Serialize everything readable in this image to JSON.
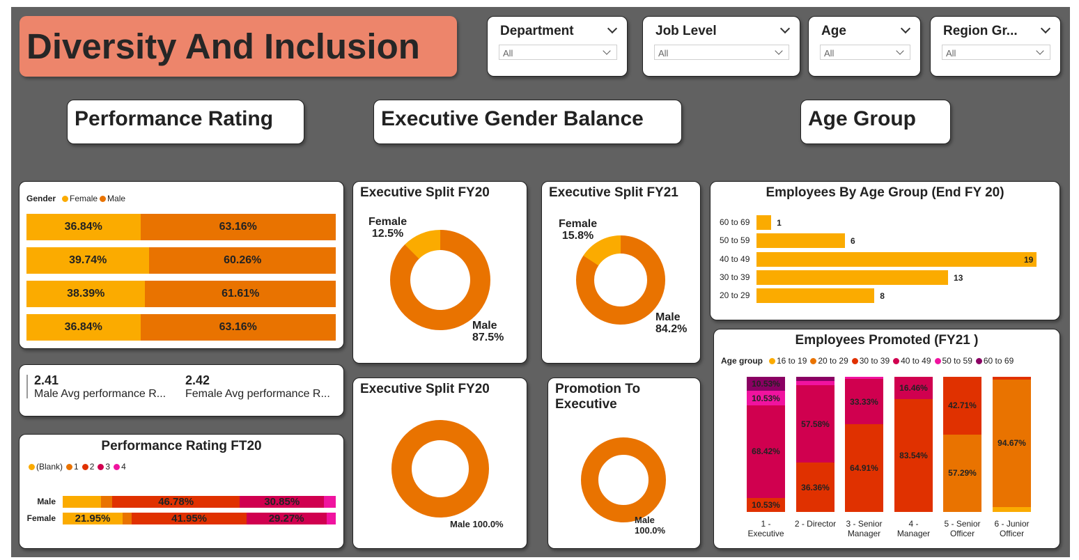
{
  "header": {
    "title": "Diversity And Inclusion"
  },
  "slicers": [
    {
      "label": "Department",
      "value": "All"
    },
    {
      "label": "Job Level",
      "value": "All"
    },
    {
      "label": "Age",
      "value": "All"
    },
    {
      "label": "Region Gr...",
      "value": "All"
    }
  ],
  "sections": {
    "performance": "Performance Rating",
    "executive": "Executive Gender Balance",
    "age": "Age Group"
  },
  "colors": {
    "female": "#fbab00",
    "male": "#e97300",
    "age_16_19": "#fbab00",
    "age_20_29": "#e97300",
    "age_30_39": "#e03100",
    "age_40_49": "#d0004f",
    "age_50_59": "#f0139f",
    "age_60_69": "#8a0063"
  },
  "kpis": [
    {
      "value": "2.41",
      "label": "Male Avg performance R..."
    },
    {
      "value": "2.42",
      "label": "Female Avg performance R..."
    }
  ],
  "chart_data": [
    {
      "id": "gender-performance",
      "type": "bar",
      "orientation": "horizontal-100-stacked",
      "legend_title": "Gender",
      "legend_position": "top-left",
      "series": [
        {
          "name": "Female",
          "values": [
            36.84,
            39.74,
            38.39,
            36.84
          ]
        },
        {
          "name": "Male",
          "values": [
            63.16,
            60.26,
            61.61,
            63.16
          ]
        }
      ],
      "labels": [
        [
          "36.84%",
          "63.16%"
        ],
        [
          "39.74%",
          "60.26%"
        ],
        [
          "38.39%",
          "61.61%"
        ],
        [
          "36.84%",
          "63.16%"
        ]
      ]
    },
    {
      "id": "perf-rating-ft20",
      "type": "bar",
      "orientation": "horizontal-100-stacked",
      "title": "Performance Rating FT20",
      "legend_position": "top-left",
      "legend": [
        "(Blank)",
        "1",
        "2",
        "3",
        "4"
      ],
      "legend_colors": [
        "#fbab00",
        "#e97300",
        "#e03100",
        "#d0004f",
        "#f0139f"
      ],
      "categories": [
        "Male",
        "Female"
      ],
      "rows": [
        {
          "values": [
            14.0,
            4.1,
            46.78,
            30.85,
            4.27
          ],
          "labels": [
            "",
            "",
            "46.78%",
            "30.85%",
            ""
          ]
        },
        {
          "values": [
            21.95,
            3.4,
            41.95,
            29.27,
            3.43
          ],
          "labels": [
            "21.95%",
            "",
            "41.95%",
            "29.27%",
            ""
          ]
        }
      ]
    },
    {
      "id": "exec-split-fy20",
      "type": "pie",
      "title": "Executive Split FY20",
      "slices": [
        {
          "name": "Female",
          "label": "12.5%",
          "value": 12.5
        },
        {
          "name": "Male",
          "label": "87.5%",
          "value": 87.5
        }
      ]
    },
    {
      "id": "exec-split-fy21",
      "type": "pie",
      "title": "Executive Split FY21",
      "slices": [
        {
          "name": "Female",
          "label": "15.8%",
          "value": 15.8
        },
        {
          "name": "Male",
          "label": "84.2%",
          "value": 84.2
        }
      ]
    },
    {
      "id": "exec-split-fy20-b",
      "type": "pie",
      "title": "Executive Split FY20",
      "slices": [
        {
          "name": "Male",
          "label": "Male 100.0%",
          "value": 100.0
        }
      ]
    },
    {
      "id": "promotion-to-exec",
      "type": "pie",
      "title": "Promotion To Executive",
      "slices": [
        {
          "name": "Male",
          "label": "100.0%",
          "value": 100.0
        }
      ]
    },
    {
      "id": "employees-by-age",
      "type": "bar",
      "orientation": "horizontal",
      "title": "Employees By Age Group (End FY 20)",
      "categories": [
        "60 to 69",
        "50 to 59",
        "40 to 49",
        "30 to 39",
        "20 to 29"
      ],
      "values": [
        1,
        6,
        19,
        13,
        8
      ],
      "xlim": [
        0,
        19
      ]
    },
    {
      "id": "employees-promoted",
      "type": "bar",
      "orientation": "vertical-100-stacked",
      "title": "Employees Promoted (FY21 )",
      "legend_title": "Age group",
      "legend_position": "top-left",
      "legend": [
        "16 to 19",
        "20 to 29",
        "30 to 39",
        "40 to 49",
        "50 to 59",
        "60 to 69"
      ],
      "categories": [
        "1 - Executive",
        "2 - Director",
        "3 - Senior Manager",
        "4 - Manager",
        "5 - Senior Officer",
        "6 - Junior Officer"
      ],
      "category_lines": [
        [
          "1 -",
          "Executive"
        ],
        [
          "2 - Director"
        ],
        [
          "3 - Senior",
          "Manager"
        ],
        [
          "4 -",
          "Manager"
        ],
        [
          "5 - Senior",
          "Officer"
        ],
        [
          "6 - Junior",
          "Officer"
        ]
      ],
      "series": [
        {
          "name": "16 to 19",
          "values": [
            0,
            0,
            0,
            0,
            0,
            3.5
          ]
        },
        {
          "name": "20 to 29",
          "values": [
            0,
            0,
            0,
            0,
            57.29,
            94.67
          ]
        },
        {
          "name": "30 to 39",
          "values": [
            10.53,
            36.36,
            64.91,
            83.54,
            42.71,
            1.83
          ]
        },
        {
          "name": "40 to 49",
          "values": [
            68.42,
            57.58,
            33.33,
            16.46,
            0,
            0
          ]
        },
        {
          "name": "50 to 59",
          "values": [
            10.53,
            3.03,
            1.76,
            0,
            0,
            0
          ]
        },
        {
          "name": "60 to 69",
          "values": [
            10.53,
            3.03,
            0,
            0,
            0,
            0
          ]
        }
      ],
      "labels": [
        [
          "",
          "",
          "10.53%",
          "68.42%",
          "10.53%",
          "10.53%"
        ],
        [
          "",
          "",
          "36.36%",
          "57.58%",
          "",
          ""
        ],
        [
          "",
          "",
          "64.91%",
          "33.33%",
          "",
          ""
        ],
        [
          "",
          "",
          "83.54%",
          "16.46%",
          "",
          ""
        ],
        [
          "",
          "57.29%",
          "42.71%",
          "",
          "",
          ""
        ],
        [
          "",
          "94.67%",
          "",
          "",
          "",
          ""
        ]
      ]
    }
  ]
}
